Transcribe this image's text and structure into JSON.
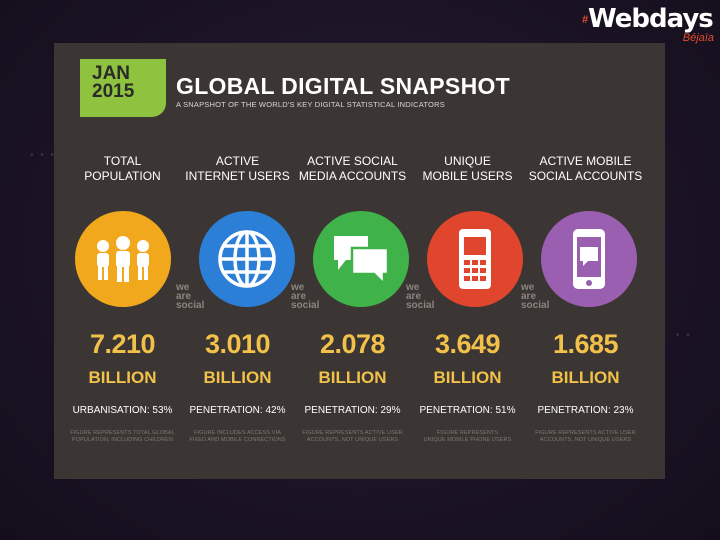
{
  "brand": {
    "hash": "#",
    "name": "Webdays",
    "sub": "Béjaïa",
    "hash_color": "#e64b2e"
  },
  "header": {
    "badge_line1": "JAN",
    "badge_line2": "2015",
    "title": "GLOBAL DIGITAL SNAPSHOT",
    "subtitle": "A SNAPSHOT OF THE WORLD'S KEY DIGITAL STATISTICAL INDICATORS",
    "badge_color": "#8fc23f"
  },
  "watermark": {
    "line1": "we",
    "line2": "are",
    "line3": "social"
  },
  "columns": [
    {
      "label_line1": "TOTAL",
      "label_line2": "POPULATION",
      "icon": "people-icon",
      "color": "#f2a81d",
      "value": "7.210",
      "unit": "BILLION",
      "stat": "URBANISATION: 53%",
      "note_line1": "FIGURE REPRESENTS TOTAL GLOBAL",
      "note_line2": "POPULATION, INCLUDING CHILDREN"
    },
    {
      "label_line1": "ACTIVE",
      "label_line2": "INTERNET USERS",
      "icon": "globe-icon",
      "color": "#2b7fd6",
      "value": "3.010",
      "unit": "BILLION",
      "stat": "PENETRATION: 42%",
      "note_line1": "FIGURE INCLUDES ACCESS VIA",
      "note_line2": "FIXED AND MOBILE CONNECTIONS"
    },
    {
      "label_line1": "ACTIVE SOCIAL",
      "label_line2": "MEDIA ACCOUNTS",
      "icon": "chat-bubbles-icon",
      "color": "#3fb24a",
      "value": "2.078",
      "unit": "BILLION",
      "stat": "PENETRATION: 29%",
      "note_line1": "FIGURE REPRESENTS ACTIVE USER",
      "note_line2": "ACCOUNTS, NOT UNIQUE USERS"
    },
    {
      "label_line1": "UNIQUE",
      "label_line2": "MOBILE USERS",
      "icon": "mobile-phone-icon",
      "color": "#e0452d",
      "value": "3.649",
      "unit": "BILLION",
      "stat": "PENETRATION: 51%",
      "note_line1": "FIGURE REPRESENTS",
      "note_line2": "UNIQUE MOBILE PHONE USERS"
    },
    {
      "label_line1": "ACTIVE MOBILE",
      "label_line2": "SOCIAL ACCOUNTS",
      "icon": "smartphone-chat-icon",
      "color": "#9a5fb0",
      "value": "1.685",
      "unit": "BILLION",
      "stat": "PENETRATION: 23%",
      "note_line1": "FIGURE REPRESENTS ACTIVE USER",
      "note_line2": "ACCOUNTS, NOT UNIQUE USERS"
    }
  ]
}
